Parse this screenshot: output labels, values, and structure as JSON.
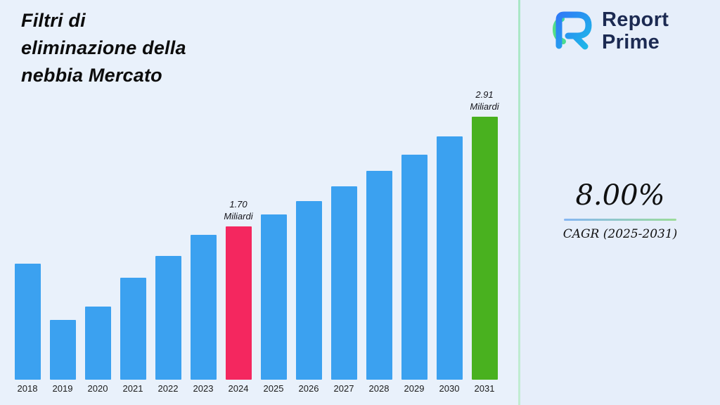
{
  "title": {
    "lines": [
      "Filtri di",
      "eliminazione della",
      "nebbia Mercato"
    ]
  },
  "brand": {
    "name_line1": "Report",
    "name_line2": "Prime",
    "logo_colors": {
      "blue_start": "#2f7bf6",
      "blue_end": "#1db8e8",
      "teal_start": "#3fd9a0",
      "teal_end": "#59e07f"
    }
  },
  "kpi": {
    "value": "8.00%",
    "label": "CAGR (2025-2031)"
  },
  "chart_data": {
    "type": "bar",
    "title": "Filtri di eliminazione della nebbia Mercato",
    "categories": [
      "2018",
      "2019",
      "2020",
      "2021",
      "2022",
      "2023",
      "2024",
      "2025",
      "2026",
      "2027",
      "2028",
      "2029",
      "2030",
      "2031"
    ],
    "values": [
      1.28,
      0.66,
      0.81,
      1.13,
      1.37,
      1.6,
      1.7,
      1.83,
      1.98,
      2.14,
      2.31,
      2.49,
      2.69,
      2.91
    ],
    "value_unit": "Miliardi",
    "xlabel": "",
    "ylabel": "",
    "ylim": [
      0,
      2.91
    ],
    "grid": false,
    "legend": false,
    "annotations": [
      {
        "category": "2024",
        "value_label": "1.70",
        "unit_label": "Miliardi"
      },
      {
        "category": "2031",
        "value_label": "2.91",
        "unit_label": "Miliardi"
      }
    ],
    "colors": {
      "default": "#3ba1f0",
      "2024": "#f4275f",
      "2031": "#49b11f"
    }
  }
}
